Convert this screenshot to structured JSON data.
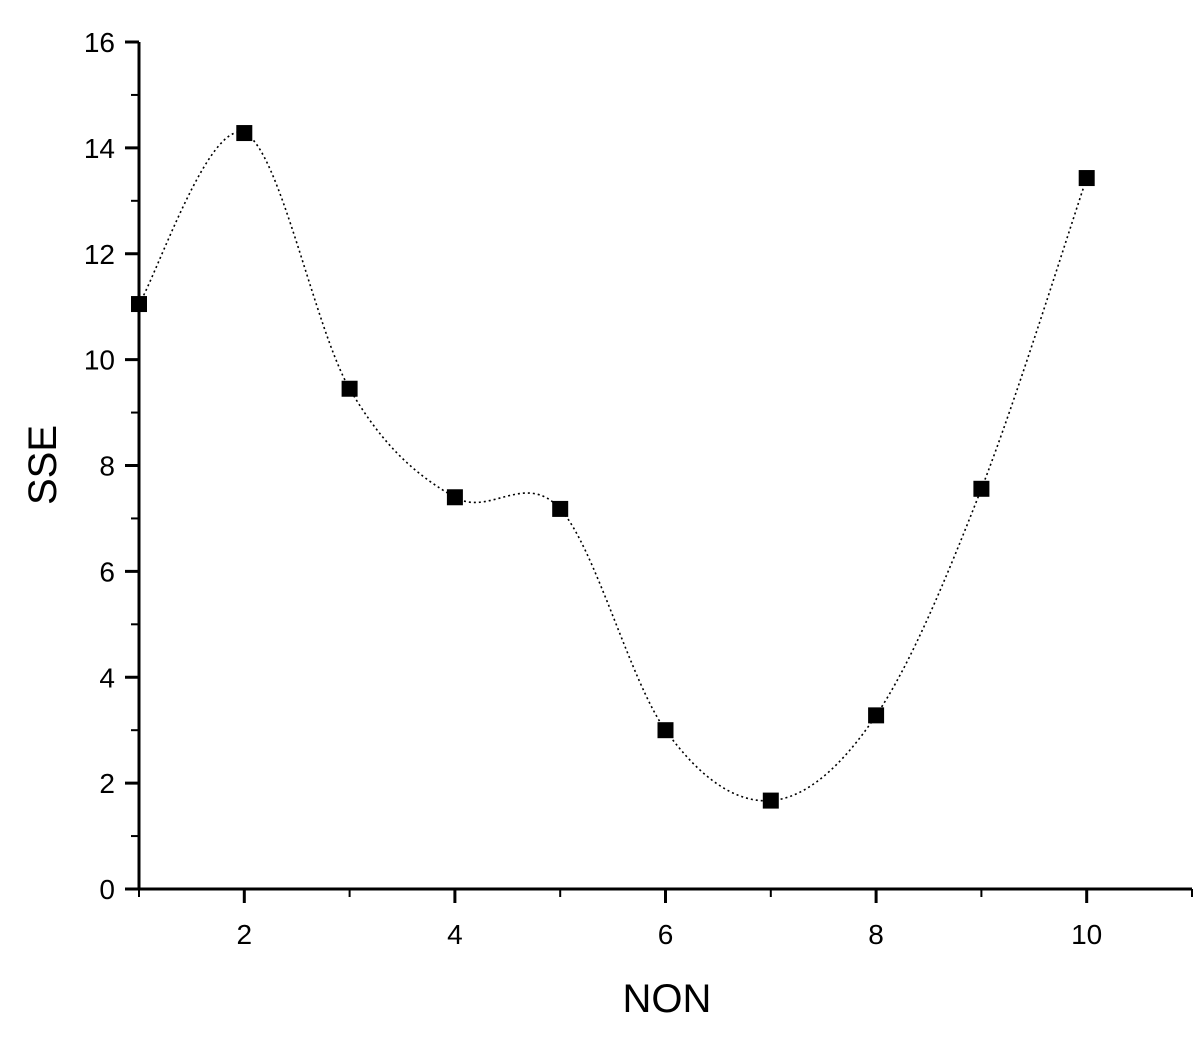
{
  "chart_data": {
    "type": "scatter",
    "title": "",
    "xlabel": "NON",
    "ylabel": "SSE",
    "xlim": [
      1,
      11
    ],
    "ylim": [
      0,
      16
    ],
    "x_ticks": [
      2,
      4,
      6,
      8,
      10
    ],
    "x_tick_labels": [
      "2",
      "4",
      "6",
      "8",
      "10"
    ],
    "y_ticks": [
      0,
      2,
      4,
      6,
      8,
      10,
      12,
      14,
      16
    ],
    "y_tick_labels": [
      "0",
      "2",
      "4",
      "6",
      "8",
      "10",
      "12",
      "14",
      "16"
    ],
    "grid": false,
    "legend": "none",
    "connector": "smooth dotted spline",
    "marker": "filled square",
    "colors": {
      "marker": "#000000",
      "line": "#000000",
      "axis": "#000000"
    },
    "series": [
      {
        "x": [
          1,
          2,
          3,
          4,
          5,
          6,
          7,
          8,
          9,
          10
        ],
        "y": [
          11.05,
          14.28,
          9.45,
          7.4,
          7.18,
          3.0,
          1.67,
          3.28,
          7.56,
          13.43
        ]
      }
    ]
  }
}
